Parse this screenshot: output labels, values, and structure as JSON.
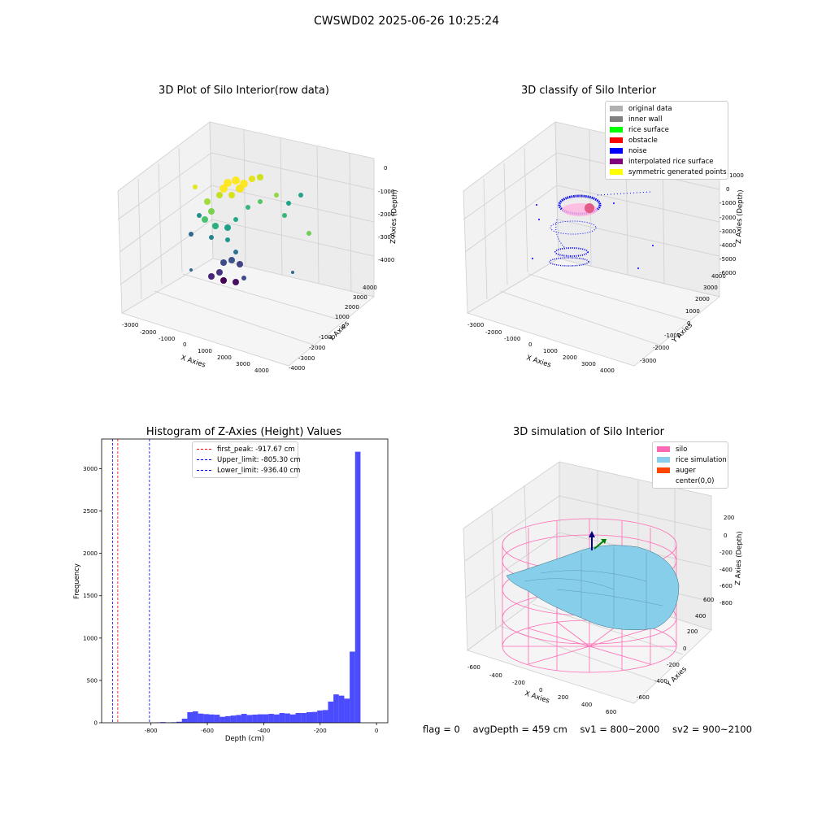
{
  "figure": {
    "suptitle": "CWSWD02 2025-06-26 10:25:24",
    "status": {
      "flag": "flag = 0",
      "avg_depth": "avgDepth = 459 cm",
      "sv1": "sv1 = 800~2000",
      "sv2": "sv2 = 900~2100"
    }
  },
  "panels": {
    "raw": {
      "title": "3D Plot of Silo Interior(row data)",
      "xlabel": "X Axies",
      "ylabel": "Y Axies",
      "zlabel": "Z Axies (Depth)",
      "x_ticks": [
        "-3000",
        "-2000",
        "-1000",
        "0",
        "1000",
        "2000",
        "3000",
        "4000"
      ],
      "y_ticks": [
        "-4000",
        "-3000",
        "-2000",
        "-1000",
        "0",
        "1000",
        "2000",
        "3000",
        "4000"
      ],
      "z_ticks": [
        "-4000",
        "-3000",
        "-2000",
        "-1000",
        "0"
      ]
    },
    "classify": {
      "title": "3D classify of Silo Interior",
      "xlabel": "X Axies",
      "ylabel": "Y Axies",
      "zlabel": "Z Axies (Depth)",
      "x_ticks": [
        "-3000",
        "-2000",
        "-1000",
        "0",
        "1000",
        "2000",
        "3000",
        "4000"
      ],
      "y_ticks": [
        "-3000",
        "-2000",
        "-1000",
        "0",
        "1000",
        "2000",
        "3000",
        "4000"
      ],
      "z_ticks": [
        "-6000",
        "-5000",
        "-4000",
        "-3000",
        "-2000",
        "-1000",
        "0",
        "1000"
      ],
      "legend": [
        {
          "label": "original data",
          "color": "#b0b0b0"
        },
        {
          "label": "inner wall",
          "color": "#808080"
        },
        {
          "label": "rice surface",
          "color": "#00ff00"
        },
        {
          "label": "obstacle",
          "color": "#ff0000"
        },
        {
          "label": "noise",
          "color": "#0000ff"
        },
        {
          "label": "interpolated rice surface",
          "color": "#800080"
        },
        {
          "label": "symmetric generated points",
          "color": "#ffff00"
        }
      ]
    },
    "simulation": {
      "title": "3D simulation of Silo Interior",
      "xlabel": "X Axies",
      "ylabel": "Y Axies",
      "zlabel": "Z Axies (Depth)",
      "x_ticks": [
        "-600",
        "-400",
        "-200",
        "0",
        "200",
        "400",
        "600"
      ],
      "y_ticks": [
        "-600",
        "-400",
        "-200",
        "0",
        "200",
        "400",
        "600"
      ],
      "z_ticks": [
        "-800",
        "-600",
        "-400",
        "-200",
        "0",
        "200"
      ],
      "legend": [
        {
          "label": "silo",
          "color": "#ff69b4"
        },
        {
          "label": "rice simulation",
          "color": "#87ceeb"
        },
        {
          "label": "auger",
          "color": "#ff4500"
        },
        {
          "label": "center(0,0)",
          "color": "#ffffff"
        }
      ]
    }
  },
  "chart_data": {
    "type": "bar",
    "title": "Histogram of Z-Axies (Height) Values",
    "xlabel": "Depth (cm)",
    "ylabel": "Frequency",
    "xlim": [
      -975,
      40
    ],
    "ylim": [
      0,
      3350
    ],
    "x_ticks": [
      -800,
      -600,
      -400,
      -200,
      0
    ],
    "y_ticks": [
      0,
      500,
      1000,
      1500,
      2000,
      2500,
      3000
    ],
    "bar_color": "#0000ff",
    "bin_width": 19.2,
    "bin_starts": [
      -786.4,
      -767.2,
      -748.0,
      -728.8,
      -709.6,
      -690.4,
      -671.2,
      -652.0,
      -632.8,
      -613.6,
      -594.4,
      -575.2,
      -556.0,
      -536.8,
      -517.6,
      -498.4,
      -479.2,
      -460.0,
      -440.8,
      -421.6,
      -402.4,
      -383.2,
      -364.0,
      -344.8,
      -325.6,
      -306.4,
      -287.2,
      -268.0,
      -248.8,
      -229.6,
      -210.4,
      -191.2,
      -172.0,
      -152.8,
      -133.6,
      -114.4,
      -95.2,
      -76.0,
      -56.8,
      -37.6,
      -18.4
    ],
    "values": [
      4,
      8,
      3,
      6,
      12,
      48,
      125,
      135,
      108,
      102,
      98,
      95,
      70,
      78,
      85,
      92,
      105,
      92,
      96,
      100,
      100,
      105,
      98,
      115,
      110,
      98,
      115,
      115,
      125,
      128,
      145,
      150,
      250,
      335,
      320,
      285,
      840,
      3200,
      0,
      0,
      0
    ],
    "vlines": [
      {
        "label": "first_peak: -917.67 cm",
        "x": -917.67,
        "color": "#ff0000"
      },
      {
        "label": "Upper_limit: -805.30 cm",
        "x": -805.3,
        "color": "#0000ff"
      },
      {
        "label": "Lower_limit: -936.40 cm",
        "x": -936.4,
        "color": "#0000ff"
      }
    ],
    "legend_position": "upper-center"
  }
}
